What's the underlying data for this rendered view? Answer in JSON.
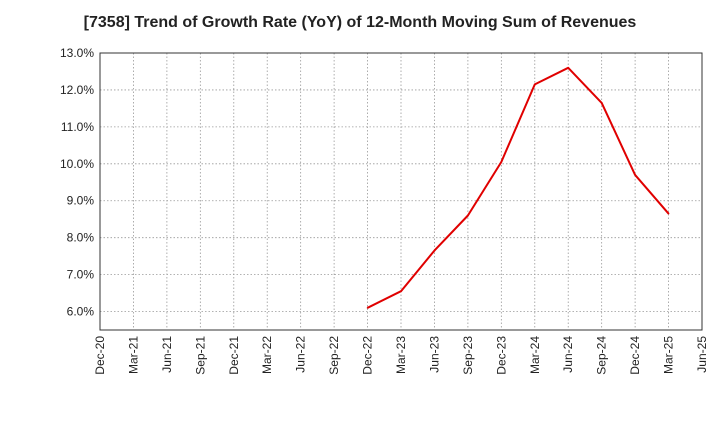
{
  "chart_data": {
    "type": "line",
    "title": "[7358]  Trend of Growth Rate (YoY) of 12-Month Moving Sum of Revenues",
    "xlabel": "",
    "ylabel": "",
    "x_ticks": [
      "Dec-20",
      "Mar-21",
      "Jun-21",
      "Sep-21",
      "Dec-21",
      "Mar-22",
      "Jun-22",
      "Sep-22",
      "Dec-22",
      "Mar-23",
      "Jun-23",
      "Sep-23",
      "Dec-23",
      "Mar-24",
      "Jun-24",
      "Sep-24",
      "Dec-24",
      "Mar-25",
      "Jun-25"
    ],
    "y_ticks": [
      "6.0%",
      "7.0%",
      "8.0%",
      "9.0%",
      "10.0%",
      "11.0%",
      "12.0%",
      "13.0%"
    ],
    "ylim": [
      5.5,
      13.0
    ],
    "grid": true,
    "series": [
      {
        "color": "#e00000",
        "x": [
          "Dec-22",
          "Mar-23",
          "Jun-23",
          "Sep-23",
          "Dec-23",
          "Mar-24",
          "Jun-24",
          "Sep-24",
          "Dec-24",
          "Mar-25"
        ],
        "values": [
          6.1,
          6.55,
          7.65,
          8.6,
          10.05,
          12.15,
          12.6,
          11.65,
          9.7,
          8.65
        ]
      }
    ]
  }
}
